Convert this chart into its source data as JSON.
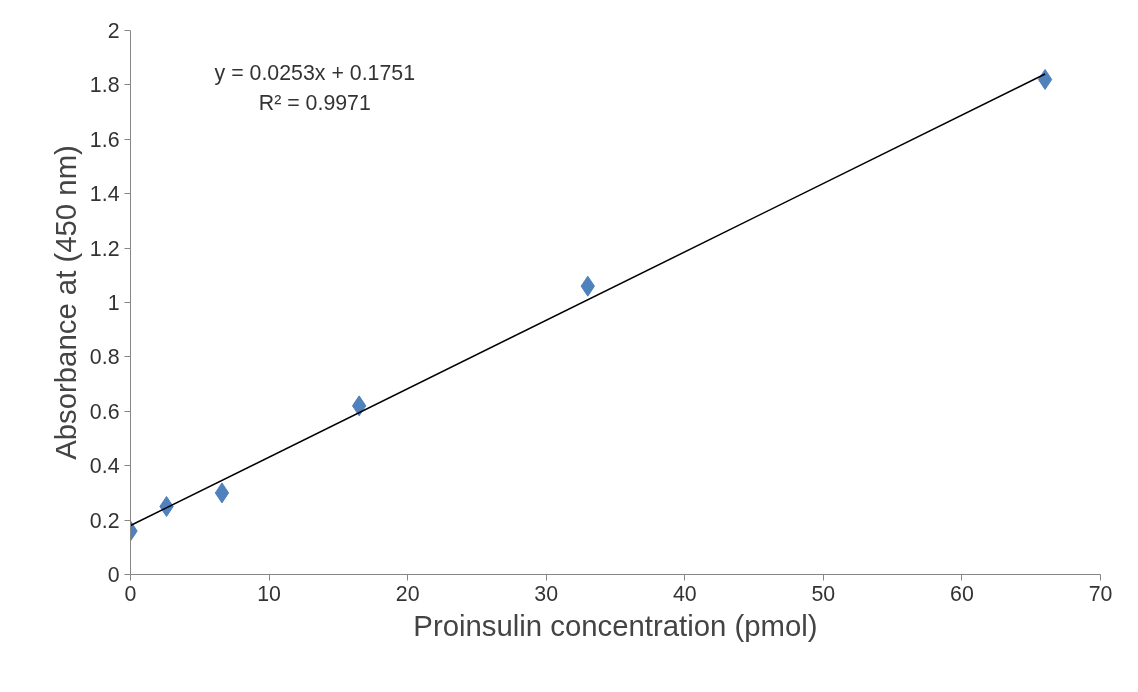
{
  "chart_data": {
    "type": "scatter",
    "xlabel": "Proinsulin concentration (pmol)",
    "ylabel": "Absorbance at (450 nm)",
    "series": [
      {
        "color": "#4f81bd",
        "marker": "diamond",
        "x": [
          0,
          2.6,
          6.6,
          16.5,
          33,
          66
        ],
        "values": [
          0.16,
          0.25,
          0.3,
          0.62,
          1.06,
          1.82
        ]
      },
      {
        "type": "line",
        "color": "#000000",
        "line_style": "solid",
        "marker": "none",
        "x": [
          0,
          66
        ],
        "values": [
          0.18,
          1.84
        ]
      }
    ],
    "xlim": [
      0,
      70
    ],
    "xticks": [
      0,
      10,
      20,
      30,
      40,
      50,
      60,
      70
    ],
    "ylim": [
      0,
      2
    ],
    "yticks": [
      0,
      0.2,
      0.4,
      0.6,
      0.8,
      1,
      1.2,
      1.4,
      1.6,
      1.8,
      2
    ],
    "grid": false,
    "annotations": [
      "y = 0.0253x + 0.1751",
      "R² = 0.9971"
    ]
  }
}
